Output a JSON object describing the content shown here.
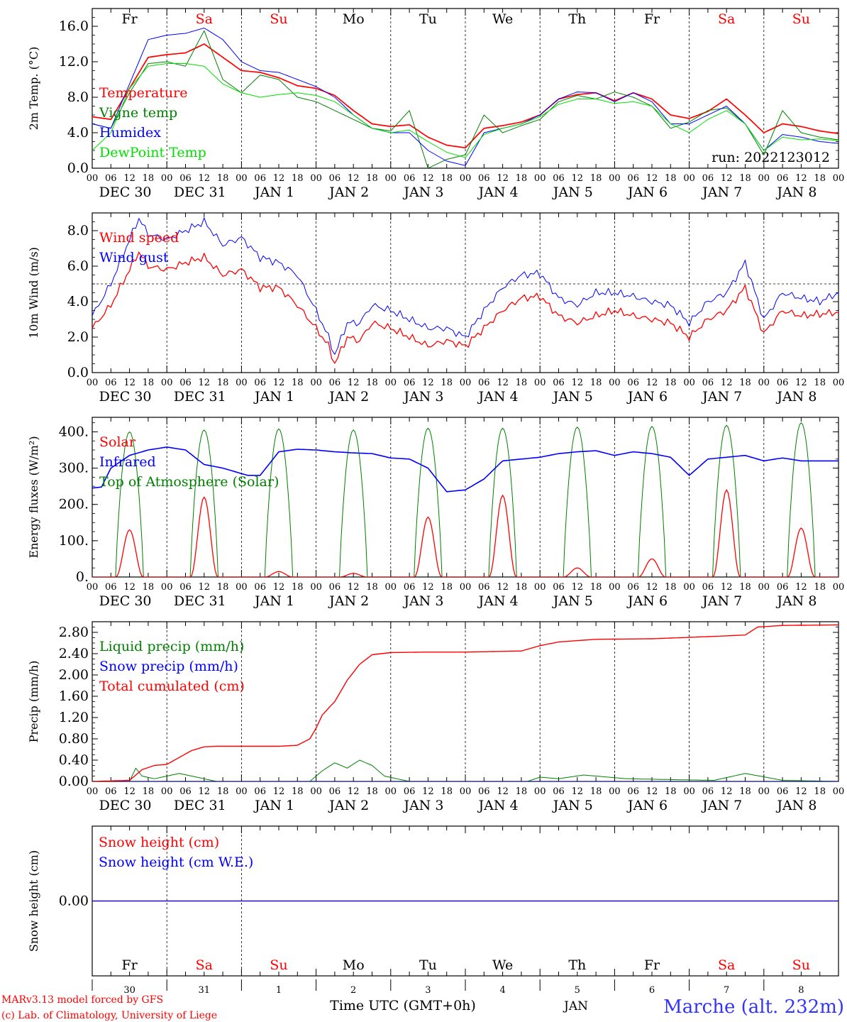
{
  "colors": {
    "temperature": "#ff0000",
    "vigne": "#008000",
    "humidex": "#0000ff",
    "dewpoint": "#00e000",
    "wind_speed": "#ff0000",
    "wind_gust": "#0000ff",
    "solar": "#ff0000",
    "infrared": "#0000ff",
    "toa": "#008000",
    "liquid": "#008000",
    "snowprecip": "#0000ff",
    "cumulated": "#ff0000",
    "snow_cm": "#ff0000",
    "snow_we": "#0000ff",
    "weekday": "#000000",
    "weekend": "#ff0000",
    "station": "#3333ff",
    "credit": "#ff0000"
  },
  "time_axis": {
    "hour_ticks": [
      "00",
      "06",
      "12",
      "18"
    ],
    "final_tick": "00",
    "days": [
      {
        "name": "Fr",
        "weekend": false,
        "date": "DEC 30",
        "num": "30"
      },
      {
        "name": "Sa",
        "weekend": true,
        "date": "DEC 31",
        "num": "31"
      },
      {
        "name": "Su",
        "weekend": true,
        "date": "JAN  1",
        "num": "1"
      },
      {
        "name": "Mo",
        "weekend": false,
        "date": "JAN  2",
        "num": "2"
      },
      {
        "name": "Tu",
        "weekend": false,
        "date": "JAN  3",
        "num": "3"
      },
      {
        "name": "We",
        "weekend": false,
        "date": "JAN  4",
        "num": "4"
      },
      {
        "name": "Th",
        "weekend": false,
        "date": "JAN  5",
        "num": "5"
      },
      {
        "name": "Fr",
        "weekend": false,
        "date": "JAN  6",
        "num": "6"
      },
      {
        "name": "Sa",
        "weekend": true,
        "date": "JAN  7",
        "num": "7"
      },
      {
        "name": "Su",
        "weekend": true,
        "date": "JAN  8",
        "num": "8"
      }
    ],
    "month_label": "JAN",
    "axis_title": "Time UTC (GMT+0h)"
  },
  "footer": {
    "model": "MARv3.13 model forced by GFS",
    "lab": "(c) Lab. of Climatology, University of Liege",
    "station": "Marche (alt. 232m)"
  },
  "chart_data": [
    {
      "type": "line",
      "ylabel": "2m Temp. (°C)",
      "yticks": [
        "0.0",
        "4.0",
        "8.0",
        "12.0",
        "16.0"
      ],
      "ylim": [
        0,
        18
      ],
      "run_label": "run: 2022123012",
      "x_unit": "hours since DEC 30 00 UTC",
      "series": [
        {
          "name": "Temperature",
          "key": "temperature",
          "x": [
            0,
            6,
            12,
            18,
            24,
            30,
            36,
            42,
            48,
            54,
            60,
            66,
            72,
            78,
            84,
            90,
            96,
            102,
            108,
            114,
            120,
            126,
            132,
            138,
            144,
            150,
            156,
            162,
            168,
            174,
            180,
            186,
            192,
            198,
            204,
            210,
            216,
            222,
            228,
            234,
            240
          ],
          "values": [
            5.8,
            5.5,
            9.0,
            12.5,
            12.8,
            13.0,
            14.0,
            12.5,
            11.0,
            10.8,
            10.2,
            9.3,
            9.0,
            8.2,
            6.5,
            5.0,
            4.7,
            4.9,
            3.5,
            2.6,
            2.3,
            4.5,
            4.8,
            5.2,
            6.0,
            7.8,
            8.3,
            8.5,
            7.6,
            8.5,
            7.8,
            6.0,
            5.6,
            6.4,
            7.8,
            6.0,
            4.0,
            5.0,
            4.7,
            4.2,
            3.9
          ]
        },
        {
          "name": "Vigne temp",
          "key": "vigne",
          "x": [
            0,
            6,
            12,
            18,
            24,
            30,
            36,
            42,
            48,
            54,
            60,
            66,
            72,
            78,
            84,
            90,
            96,
            102,
            108,
            114,
            120,
            126,
            132,
            138,
            144,
            150,
            156,
            162,
            168,
            174,
            180,
            186,
            192,
            198,
            204,
            210,
            216,
            222,
            228,
            234,
            240
          ],
          "values": [
            5.0,
            4.5,
            8.5,
            11.8,
            12.0,
            11.5,
            15.5,
            10.0,
            8.5,
            10.5,
            10.0,
            8.0,
            7.5,
            6.5,
            5.5,
            4.5,
            4.2,
            6.5,
            0.0,
            1.0,
            1.5,
            6.0,
            4.0,
            4.8,
            5.5,
            7.5,
            8.2,
            7.8,
            8.6,
            8.0,
            7.0,
            4.5,
            5.2,
            6.5,
            6.8,
            5.0,
            1.5,
            6.5,
            4.0,
            3.5,
            3.2
          ]
        },
        {
          "name": "Humidex",
          "key": "humidex",
          "x": [
            0,
            6,
            12,
            18,
            24,
            30,
            36,
            42,
            48,
            54,
            60,
            66,
            72,
            78,
            84,
            90,
            96,
            102,
            108,
            114,
            120,
            126,
            132,
            138,
            144,
            150,
            156,
            162,
            168,
            174,
            180,
            186,
            192,
            198,
            204,
            210,
            216,
            222,
            228,
            234,
            240
          ],
          "values": [
            5.0,
            4.5,
            9.5,
            14.5,
            15.0,
            15.2,
            15.8,
            14.5,
            12.0,
            11.0,
            10.8,
            10.0,
            9.2,
            8.0,
            6.0,
            4.5,
            4.0,
            4.0,
            2.0,
            0.8,
            0.3,
            4.0,
            4.5,
            5.0,
            6.0,
            7.8,
            8.6,
            8.5,
            7.5,
            8.5,
            7.5,
            5.0,
            5.0,
            6.0,
            7.0,
            5.0,
            2.0,
            3.8,
            3.5,
            3.0,
            2.8
          ]
        },
        {
          "name": "DewPoint Temp",
          "key": "dewpoint",
          "x": [
            0,
            6,
            12,
            18,
            24,
            30,
            36,
            42,
            48,
            54,
            60,
            66,
            72,
            78,
            84,
            90,
            96,
            102,
            108,
            114,
            120,
            126,
            132,
            138,
            144,
            150,
            156,
            162,
            168,
            174,
            180,
            186,
            192,
            198,
            204,
            210,
            216,
            222,
            228,
            234,
            240
          ],
          "values": [
            2.0,
            4.0,
            9.0,
            11.5,
            11.8,
            11.8,
            11.5,
            9.5,
            8.5,
            8.0,
            8.3,
            8.5,
            8.2,
            7.5,
            6.0,
            4.5,
            4.0,
            4.3,
            3.0,
            1.8,
            1.2,
            3.8,
            4.5,
            5.0,
            5.8,
            7.2,
            7.8,
            7.8,
            7.3,
            7.5,
            7.0,
            5.0,
            4.0,
            5.5,
            6.5,
            5.0,
            2.0,
            3.5,
            3.2,
            3.3,
            3.1
          ]
        }
      ]
    },
    {
      "type": "line",
      "ylabel": "10m Wind (m/s)",
      "yticks": [
        "0.0",
        "2.0",
        "4.0",
        "6.0",
        "8.0"
      ],
      "ylim": [
        0,
        9
      ],
      "reference_line": 5,
      "x_unit": "hours since DEC 30 00 UTC",
      "series": [
        {
          "name": "Wind speed",
          "key": "wind_speed",
          "x": [
            0,
            6,
            12,
            15,
            18,
            24,
            30,
            36,
            42,
            48,
            54,
            60,
            66,
            72,
            76,
            78,
            82,
            86,
            90,
            96,
            102,
            108,
            114,
            120,
            126,
            132,
            138,
            144,
            150,
            156,
            162,
            168,
            174,
            180,
            186,
            192,
            198,
            204,
            210,
            216,
            222,
            228,
            234,
            240
          ],
          "values": [
            2.5,
            3.8,
            5.8,
            6.8,
            6.0,
            5.8,
            6.2,
            6.5,
            5.5,
            5.8,
            4.8,
            4.8,
            3.8,
            2.5,
            1.5,
            0.5,
            2.0,
            1.8,
            2.8,
            2.5,
            2.0,
            1.5,
            1.8,
            1.5,
            2.5,
            3.5,
            4.2,
            4.3,
            3.2,
            2.8,
            3.2,
            3.5,
            3.2,
            3.0,
            2.8,
            2.0,
            3.0,
            3.5,
            4.8,
            2.2,
            3.5,
            3.2,
            3.3,
            3.4
          ]
        },
        {
          "name": "Wind gust",
          "key": "wind_gust",
          "x": [
            0,
            6,
            12,
            15,
            18,
            24,
            30,
            36,
            42,
            48,
            54,
            60,
            66,
            72,
            76,
            78,
            82,
            86,
            90,
            96,
            102,
            108,
            114,
            120,
            126,
            132,
            138,
            144,
            150,
            156,
            162,
            168,
            174,
            180,
            186,
            192,
            198,
            204,
            210,
            216,
            222,
            228,
            234,
            240
          ],
          "values": [
            3.2,
            5.0,
            7.5,
            8.7,
            7.8,
            7.5,
            8.0,
            8.5,
            7.2,
            7.6,
            6.5,
            6.2,
            5.5,
            3.5,
            2.0,
            1.0,
            2.8,
            2.8,
            3.8,
            3.5,
            3.0,
            2.5,
            2.5,
            2.0,
            3.5,
            4.8,
            5.5,
            5.6,
            4.2,
            3.8,
            4.5,
            4.5,
            4.3,
            4.0,
            3.8,
            2.8,
            4.0,
            4.5,
            6.2,
            3.0,
            4.5,
            4.2,
            4.0,
            4.5
          ]
        }
      ]
    },
    {
      "type": "line",
      "ylabel": "Energy fluxes (W/m²)",
      "yticks": [
        "0.",
        "100.",
        "200.",
        "300.",
        "400."
      ],
      "ylim": [
        0,
        440
      ],
      "x_unit": "hours since DEC 30 00 UTC",
      "solar_peaks": [
        130,
        220,
        15,
        10,
        165,
        225,
        25,
        50,
        240,
        135
      ],
      "toa_peaks": [
        400,
        405,
        408,
        405,
        410,
        410,
        413,
        415,
        418,
        425
      ],
      "series": [
        {
          "name": "Solar",
          "key": "solar"
        },
        {
          "name": "Infrared",
          "key": "infrared",
          "x": [
            0,
            3,
            6,
            12,
            18,
            24,
            30,
            36,
            42,
            48,
            50,
            54,
            60,
            66,
            72,
            78,
            84,
            90,
            96,
            102,
            108,
            114,
            120,
            126,
            132,
            138,
            144,
            150,
            156,
            162,
            168,
            174,
            180,
            186,
            192,
            198,
            204,
            210,
            216,
            222,
            228,
            234,
            240
          ],
          "values": [
            245,
            248,
            300,
            335,
            350,
            358,
            350,
            310,
            300,
            285,
            280,
            280,
            345,
            352,
            350,
            345,
            342,
            340,
            328,
            325,
            300,
            235,
            240,
            270,
            320,
            325,
            330,
            340,
            345,
            348,
            335,
            345,
            340,
            330,
            280,
            325,
            330,
            335,
            320,
            328,
            320,
            320,
            320
          ]
        }
      ]
    },
    {
      "type": "line",
      "ylabel": "Precip (mm/h)",
      "yticks": [
        "0.00",
        "0.40",
        "0.80",
        "1.20",
        "1.60",
        "2.00",
        "2.40",
        "2.80"
      ],
      "ylim": [
        0,
        3.0
      ],
      "x_unit": "hours since DEC 30 00 UTC",
      "series": [
        {
          "name": "Liquid precip (mm/h)",
          "key": "liquid",
          "x": [
            0,
            12,
            14,
            16,
            20,
            24,
            28,
            32,
            36,
            40,
            44,
            70,
            74,
            78,
            82,
            86,
            90,
            94,
            98,
            102,
            140,
            144,
            150,
            158,
            172,
            190,
            200,
            210,
            222,
            240
          ],
          "values": [
            0,
            0,
            0.25,
            0.1,
            0.05,
            0.1,
            0.15,
            0.1,
            0.05,
            0,
            0,
            0,
            0.2,
            0.35,
            0.25,
            0.4,
            0.3,
            0.1,
            0.05,
            0,
            0,
            0.08,
            0.05,
            0.12,
            0.05,
            0.03,
            0.02,
            0.15,
            0.02,
            0
          ]
        },
        {
          "name": "Snow precip (mm/h)",
          "key": "snowprecip",
          "x": [
            0,
            240
          ],
          "values": [
            0,
            0
          ]
        },
        {
          "name": "Total cumulated (cm)",
          "key": "cumulated",
          "x": [
            0,
            12,
            16,
            20,
            24,
            28,
            32,
            36,
            40,
            48,
            60,
            66,
            70,
            72,
            74,
            78,
            82,
            86,
            90,
            96,
            108,
            120,
            138,
            144,
            150,
            162,
            180,
            198,
            210,
            214,
            222,
            240
          ],
          "values": [
            0,
            0.02,
            0.22,
            0.3,
            0.32,
            0.45,
            0.58,
            0.65,
            0.66,
            0.66,
            0.66,
            0.68,
            0.8,
            1.0,
            1.25,
            1.5,
            1.9,
            2.2,
            2.38,
            2.42,
            2.43,
            2.43,
            2.45,
            2.55,
            2.62,
            2.67,
            2.68,
            2.72,
            2.75,
            2.9,
            2.93,
            2.94
          ]
        }
      ]
    },
    {
      "type": "line",
      "ylabel": "Snow height (cm)",
      "yticks": [
        "0.00"
      ],
      "ylim": [
        -1,
        1
      ],
      "x_unit": "hours since DEC 30 00 UTC",
      "series": [
        {
          "name": "Snow height (cm)",
          "key": "snow_cm",
          "x": [
            0,
            240
          ],
          "values": [
            0,
            0
          ]
        },
        {
          "name": "Snow height (cm W.E.)",
          "key": "snow_we",
          "x": [
            0,
            240
          ],
          "values": [
            0,
            0
          ]
        }
      ]
    }
  ]
}
